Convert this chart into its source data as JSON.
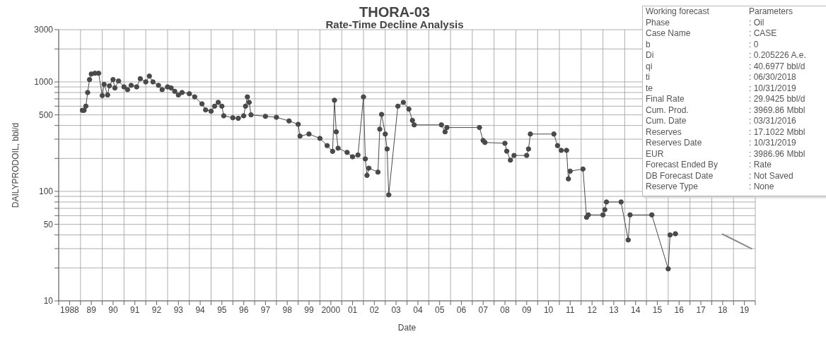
{
  "chart_data": [
    {
      "type": "line",
      "title": "THORA-03",
      "subtitle": "Rate-Time Decline Analysis",
      "xlabel": "Date",
      "ylabel": "DAILYPRODOIL, bbl/d",
      "log": "y",
      "grid": true,
      "marker": "circle",
      "line_style": "solid",
      "xlim": [
        "1988",
        "2020"
      ],
      "ylim": [
        10,
        3000
      ],
      "xticks": [
        {
          "value": "1988",
          "label": null
        },
        {
          "value": "1988-07-02",
          "label": "1988"
        },
        {
          "value": "1989",
          "label": null
        },
        {
          "value": "1989-07-02",
          "label": "89"
        },
        {
          "value": "1990",
          "label": null
        },
        {
          "value": "1990-07-02",
          "label": "90"
        },
        {
          "value": "1991",
          "label": null
        },
        {
          "value": "1991-07-02",
          "label": "91"
        },
        {
          "value": "1992",
          "label": null
        },
        {
          "value": "1992-07-02",
          "label": "92"
        },
        {
          "value": "1993",
          "label": null
        },
        {
          "value": "1993-07-02",
          "label": "93"
        },
        {
          "value": "1994",
          "label": null
        },
        {
          "value": "1994-07-02",
          "label": "94"
        },
        {
          "value": "1995",
          "label": null
        },
        {
          "value": "1995-07-02",
          "label": "95"
        },
        {
          "value": "1996",
          "label": null
        },
        {
          "value": "1996-07-02",
          "label": "96"
        },
        {
          "value": "1997",
          "label": null
        },
        {
          "value": "1997-07-02",
          "label": "97"
        },
        {
          "value": "1998",
          "label": null
        },
        {
          "value": "1998-07-02",
          "label": "98"
        },
        {
          "value": "1999",
          "label": null
        },
        {
          "value": "1999-07-02",
          "label": "99"
        },
        {
          "value": "2000",
          "label": null
        },
        {
          "value": "2000-07-02",
          "label": "2000"
        },
        {
          "value": "2001",
          "label": null
        },
        {
          "value": "2001-07-02",
          "label": "01"
        },
        {
          "value": "2002",
          "label": null
        },
        {
          "value": "2002-07-02",
          "label": "02"
        },
        {
          "value": "2003",
          "label": null
        },
        {
          "value": "2003-07-02",
          "label": "03"
        },
        {
          "value": "2004",
          "label": null
        },
        {
          "value": "2004-07-02",
          "label": "04"
        },
        {
          "value": "2005",
          "label": null
        },
        {
          "value": "2005-07-02",
          "label": "05"
        },
        {
          "value": "2006",
          "label": null
        },
        {
          "value": "2006-07-02",
          "label": "06"
        },
        {
          "value": "2007",
          "label": null
        },
        {
          "value": "2007-07-02",
          "label": "07"
        },
        {
          "value": "2008",
          "label": null
        },
        {
          "value": "2008-07-02",
          "label": "08"
        },
        {
          "value": "2009",
          "label": null
        },
        {
          "value": "2009-07-02",
          "label": "09"
        },
        {
          "value": "2010",
          "label": null
        },
        {
          "value": "2010-07-02",
          "label": "10"
        },
        {
          "value": "2011",
          "label": null
        },
        {
          "value": "2011-07-02",
          "label": "11"
        },
        {
          "value": "2012",
          "label": null
        },
        {
          "value": "2012-07-02",
          "label": "12"
        },
        {
          "value": "2013",
          "label": null
        },
        {
          "value": "2013-07-02",
          "label": "13"
        },
        {
          "value": "2014",
          "label": null
        },
        {
          "value": "2014-07-02",
          "label": "14"
        },
        {
          "value": "2015",
          "label": null
        },
        {
          "value": "2015-07-02",
          "label": "15"
        },
        {
          "value": "2016",
          "label": null
        },
        {
          "value": "2016-07-02",
          "label": "16"
        },
        {
          "value": "2017",
          "label": null
        },
        {
          "value": "2017-07-02",
          "label": "17"
        },
        {
          "value": "2018",
          "label": null
        },
        {
          "value": "2018-07-02",
          "label": "18"
        },
        {
          "value": "2019",
          "label": null
        },
        {
          "value": "2019-07-02",
          "label": "19"
        },
        {
          "value": "2020",
          "label": null
        }
      ],
      "yticks": [
        10,
        {
          "value": 20,
          "label": null
        },
        {
          "value": 30,
          "label": null
        },
        {
          "value": 40,
          "label": null
        },
        50,
        {
          "value": 60,
          "label": null
        },
        {
          "value": 70,
          "label": null
        },
        {
          "value": 80,
          "label": null
        },
        {
          "value": 90,
          "label": null
        },
        100,
        {
          "value": 200,
          "label": null
        },
        {
          "value": 300,
          "label": null
        },
        {
          "value": 400,
          "label": null
        },
        500,
        {
          "value": 600,
          "label": null
        },
        {
          "value": 700,
          "label": null
        },
        {
          "value": 800,
          "label": null
        },
        {
          "value": 900,
          "label": null
        },
        1000,
        {
          "value": 2000,
          "label": null
        },
        3000
      ],
      "series": [
        {
          "color": "#4a4a4a",
          "x": [
            "1989-02",
            "1989-03",
            "1989-04",
            "1989-05",
            "1989-06",
            "1989-07",
            "1989-09",
            "1989-11",
            "1990-01",
            "1990-02",
            "1990-04",
            "1990-05",
            "1990-07",
            "1990-08",
            "1990-10",
            "1991-01",
            "1991-03",
            "1991-05",
            "1991-08",
            "1991-10",
            "1992-01",
            "1992-03",
            "1992-05",
            "1992-08",
            "1992-10",
            "1993-01",
            "1993-03",
            "1993-05",
            "1993-07",
            "1993-09",
            "1994-01",
            "1994-04",
            "1994-08",
            "1994-10",
            "1995-01",
            "1995-03",
            "1995-05",
            "1995-07",
            "1995-08",
            "1996-01",
            "1996-04",
            "1996-07",
            "1996-08",
            "1996-09",
            "1996-10",
            "1996-11",
            "1997-07",
            "1998-01",
            "1998-08",
            "1999-01",
            "1999-02",
            "1999-07",
            "2000-01",
            "2000-05",
            "2000-08",
            "2000-09",
            "2000-10",
            "2000-11",
            "2001-04",
            "2001-07",
            "2001-10",
            "2002-01",
            "2002-02",
            "2002-03",
            "2002-04",
            "2002-09",
            "2002-10",
            "2002-11",
            "2003-01",
            "2003-02",
            "2003-03",
            "2003-08",
            "2003-11",
            "2004-02",
            "2004-04",
            "2004-05",
            "2005-08",
            "2005-10",
            "2005-11",
            "2007-05",
            "2007-07",
            "2007-08",
            "2008-07",
            "2008-08",
            "2008-10",
            "2008-12",
            "2009-07",
            "2009-08",
            "2009-09",
            "2010-10",
            "2010-12",
            "2011-02",
            "2011-05",
            "2011-06",
            "2011-07",
            "2012-02",
            "2012-04",
            "2012-05",
            "2013-01",
            "2013-02",
            "2013-03",
            "2013-11",
            "2014-03",
            "2014-04",
            "2015-04",
            "2016-01",
            "2016-02",
            "2016-05"
          ],
          "values": [
            550,
            550,
            600,
            800,
            1050,
            1180,
            1200,
            1200,
            750,
            950,
            760,
            920,
            1050,
            880,
            1020,
            900,
            850,
            930,
            900,
            1070,
            1000,
            1130,
            1000,
            930,
            850,
            900,
            880,
            820,
            760,
            800,
            780,
            730,
            630,
            555,
            540,
            600,
            650,
            600,
            490,
            470,
            465,
            490,
            600,
            730,
            650,
            500,
            485,
            475,
            440,
            410,
            320,
            334,
            305,
            262,
            232,
            680,
            350,
            248,
            227,
            207,
            215,
            730,
            198,
            140,
            163,
            150,
            370,
            505,
            334,
            244,
            93,
            600,
            650,
            565,
            445,
            405,
            405,
            350,
            383,
            383,
            292,
            280,
            275,
            233,
            193,
            213,
            213,
            244,
            334,
            334,
            262,
            237,
            237,
            130,
            153,
            160,
            58,
            61,
            61,
            68,
            80,
            80,
            36,
            61,
            61,
            19.6,
            40,
            41
          ]
        },
        {
          "type": "line",
          "marker": "none",
          "color": "#8a8a8a",
          "x": [
            "2018-06-30",
            "2019-10-31"
          ],
          "values": [
            40.6977,
            29.9425
          ]
        }
      ]
    },
    {
      "type": "other",
      "title": "Working forecast",
      "subtitle": "Parameters",
      "annotations": [
        "Phase : Oil",
        "Case Name : CASE",
        "b : 0",
        "Di : 0.205226 A.e.",
        "qi : 40.6977 bbl/d",
        "ti : 06/30/2018",
        "te : 10/31/2019",
        "Final Rate : 29.9425 bbl/d",
        "Cum. Prod. : 3969.86 Mbbl",
        "Cum. Date : 03/31/2016",
        "Reserves : 17.1022 Mbbl",
        "Reserves Date : 10/31/2019",
        "EUR : 3986.96 Mbbl",
        "Forecast Ended By : Rate",
        "DB Forecast Date : Not Saved",
        "Reserve Type : None"
      ]
    }
  ]
}
